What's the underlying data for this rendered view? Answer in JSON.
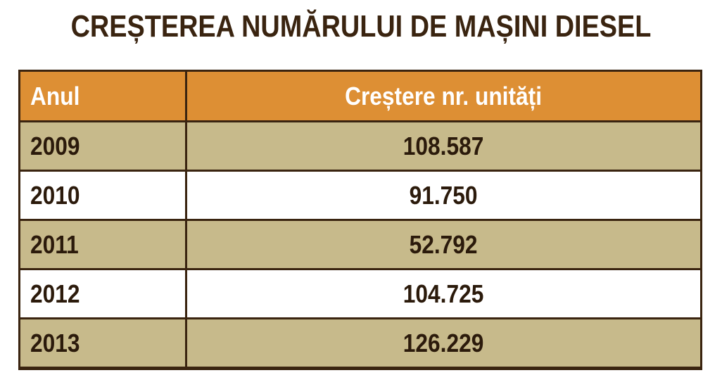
{
  "title": "CREȘTEREA NUMĂRULUI DE MAȘINI DIESEL",
  "colors": {
    "header_bg": "#dd8f34",
    "odd_row_bg": "#c7ba8b",
    "even_row_bg": "#ffffff",
    "border": "#3a2410",
    "text": "#2b1a0b",
    "header_text": "#ffffff"
  },
  "chart_data": {
    "type": "table",
    "title": "CREȘTEREA NUMĂRULUI DE MAȘINI DIESEL",
    "columns": [
      "Anul",
      "Creștere nr. unități"
    ],
    "rows": [
      {
        "year": "2009",
        "value": "108.587"
      },
      {
        "year": "2010",
        "value": "91.750"
      },
      {
        "year": "2011",
        "value": "52.792"
      },
      {
        "year": "2012",
        "value": "104.725"
      },
      {
        "year": "2013",
        "value": "126.229"
      }
    ]
  }
}
